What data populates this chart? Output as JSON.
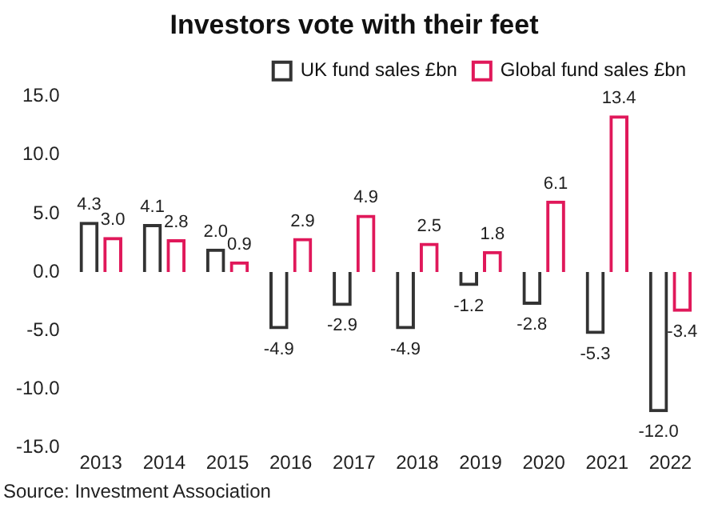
{
  "chart_data": {
    "type": "bar",
    "title": "Investors vote with their feet",
    "categories": [
      "2013",
      "2014",
      "2015",
      "2016",
      "2017",
      "2018",
      "2019",
      "2020",
      "2021",
      "2022"
    ],
    "series": [
      {
        "name": "UK fund sales £bn",
        "color": "#333333",
        "values": [
          4.3,
          4.1,
          2.0,
          -4.9,
          -2.9,
          -4.9,
          -1.2,
          -2.8,
          -5.3,
          -12.0
        ],
        "value_labels": [
          "4.3",
          "4.1",
          "2.0",
          "-4.9",
          "-2.9",
          "-4.9",
          "-1.2",
          "-2.8",
          "-5.3",
          "-12.0"
        ]
      },
      {
        "name": "Global fund sales £bn",
        "color": "#e0185a",
        "values": [
          3.0,
          2.8,
          0.9,
          2.9,
          4.9,
          2.5,
          1.8,
          6.1,
          13.4,
          -3.4
        ],
        "value_labels": [
          "3.0",
          "2.8",
          "0.9",
          "2.9",
          "4.9",
          "2.5",
          "1.8",
          "6.1",
          "13.4",
          "-3.4"
        ]
      }
    ],
    "ylim": [
      -15,
      15
    ],
    "yticks": [
      {
        "value": -15,
        "label": "-15.0"
      },
      {
        "value": -10,
        "label": "-10.0"
      },
      {
        "value": -5,
        "label": "-5.0"
      },
      {
        "value": 0,
        "label": "0.0"
      },
      {
        "value": 5,
        "label": "5.0"
      },
      {
        "value": 10,
        "label": "10.0"
      },
      {
        "value": 15,
        "label": "15.0"
      }
    ],
    "grid": false,
    "legend": "top",
    "annotations": [
      "Source: Investment Association"
    ]
  }
}
